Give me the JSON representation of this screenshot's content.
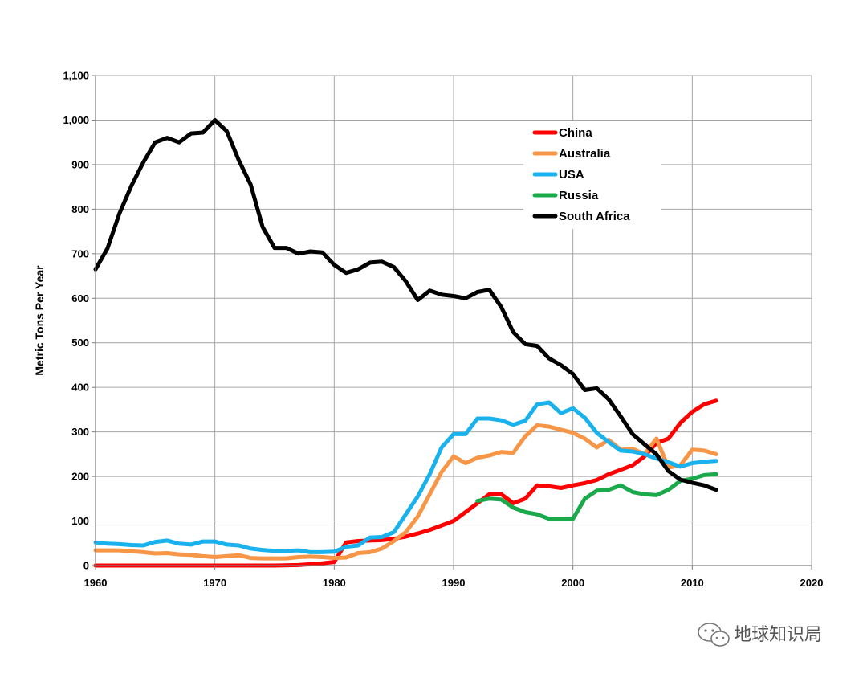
{
  "chart_data": {
    "type": "line",
    "title": "",
    "xlabel": "",
    "ylabel": "Metric Tons Per Year",
    "xlim": [
      1960,
      2020
    ],
    "ylim": [
      0,
      1100
    ],
    "grid": true,
    "legend_position": "top-right",
    "x_ticks": [
      1960,
      1970,
      1980,
      1990,
      2000,
      2010,
      2020
    ],
    "x_tick_labels": [
      "1960",
      "1970",
      "1980",
      "1990",
      "2000",
      "2010",
      "2020"
    ],
    "y_ticks": [
      0,
      100,
      200,
      300,
      400,
      500,
      600,
      700,
      800,
      900,
      1000,
      1100
    ],
    "y_tick_labels": [
      "0",
      "100",
      "200",
      "300",
      "400",
      "500",
      "600",
      "700",
      "800",
      "900",
      "1,000",
      "1,100"
    ],
    "series": [
      {
        "name": "China",
        "color": "#ff0000",
        "x": [
          1960,
          1965,
          1970,
          1975,
          1977,
          1978,
          1979,
          1980,
          1981,
          1982,
          1983,
          1984,
          1985,
          1986,
          1987,
          1988,
          1989,
          1990,
          1991,
          1992,
          1993,
          1994,
          1995,
          1996,
          1997,
          1998,
          1999,
          2000,
          2001,
          2002,
          2003,
          2004,
          2005,
          2006,
          2007,
          2008,
          2009,
          2010,
          2011,
          2012
        ],
        "y": [
          0,
          0,
          0,
          0,
          1,
          3,
          5,
          8,
          52,
          55,
          56,
          57,
          60,
          65,
          72,
          80,
          90,
          100,
          120,
          140,
          160,
          160,
          140,
          150,
          180,
          178,
          174,
          180,
          185,
          192,
          205,
          215,
          225,
          245,
          275,
          285,
          320,
          345,
          362,
          370
        ]
      },
      {
        "name": "Australia",
        "color": "#f79646",
        "x": [
          1960,
          1961,
          1962,
          1963,
          1964,
          1965,
          1966,
          1967,
          1968,
          1969,
          1970,
          1971,
          1972,
          1973,
          1974,
          1975,
          1976,
          1977,
          1978,
          1979,
          1980,
          1981,
          1982,
          1983,
          1984,
          1985,
          1986,
          1987,
          1988,
          1989,
          1990,
          1991,
          1992,
          1993,
          1994,
          1995,
          1996,
          1997,
          1998,
          1999,
          2000,
          2001,
          2002,
          2003,
          2004,
          2005,
          2006,
          2007,
          2008,
          2009,
          2010,
          2011,
          2012
        ],
        "y": [
          34,
          34,
          34,
          32,
          30,
          27,
          28,
          25,
          24,
          21,
          19,
          21,
          23,
          17,
          16,
          16,
          16,
          19,
          20,
          19,
          17,
          18,
          28,
          30,
          38,
          55,
          75,
          110,
          160,
          210,
          245,
          230,
          242,
          247,
          255,
          253,
          290,
          315,
          312,
          305,
          298,
          285,
          265,
          282,
          260,
          262,
          250,
          285,
          220,
          225,
          260,
          258,
          250
        ]
      },
      {
        "name": "USA",
        "color": "#1ab2ec",
        "x": [
          1960,
          1961,
          1962,
          1963,
          1964,
          1965,
          1966,
          1967,
          1968,
          1969,
          1970,
          1971,
          1972,
          1973,
          1974,
          1975,
          1976,
          1977,
          1978,
          1979,
          1980,
          1981,
          1982,
          1983,
          1984,
          1985,
          1986,
          1987,
          1988,
          1989,
          1990,
          1991,
          1992,
          1993,
          1994,
          1995,
          1996,
          1997,
          1998,
          1999,
          2000,
          2001,
          2002,
          2003,
          2004,
          2005,
          2006,
          2007,
          2008,
          2009,
          2010,
          2011,
          2012
        ],
        "y": [
          52,
          49,
          48,
          46,
          45,
          53,
          56,
          49,
          47,
          54,
          54,
          47,
          45,
          38,
          35,
          33,
          33,
          34,
          30,
          30,
          31,
          42,
          45,
          63,
          64,
          75,
          115,
          155,
          205,
          265,
          295,
          295,
          330,
          330,
          326,
          316,
          325,
          362,
          366,
          342,
          353,
          332,
          298,
          277,
          258,
          256,
          250,
          240,
          232,
          222,
          230,
          233,
          235
        ]
      },
      {
        "name": "Russia",
        "color": "#1aaa4c",
        "x": [
          1992,
          1993,
          1994,
          1995,
          1996,
          1997,
          1998,
          1999,
          2000,
          2001,
          2002,
          2003,
          2004,
          2005,
          2006,
          2007,
          2008,
          2009,
          2010,
          2011,
          2012
        ],
        "y": [
          145,
          150,
          148,
          130,
          120,
          115,
          105,
          105,
          105,
          150,
          168,
          170,
          180,
          165,
          160,
          158,
          170,
          190,
          195,
          203,
          205
        ]
      },
      {
        "name": "South Africa",
        "color": "#000000",
        "x": [
          1960,
          1961,
          1962,
          1963,
          1964,
          1965,
          1966,
          1967,
          1968,
          1969,
          1970,
          1971,
          1972,
          1973,
          1974,
          1975,
          1976,
          1977,
          1978,
          1979,
          1980,
          1981,
          1982,
          1983,
          1984,
          1985,
          1986,
          1987,
          1988,
          1989,
          1990,
          1991,
          1992,
          1993,
          1994,
          1995,
          1996,
          1997,
          1998,
          1999,
          2000,
          2001,
          2002,
          2003,
          2004,
          2005,
          2006,
          2007,
          2008,
          2009,
          2010,
          2011,
          2012
        ],
        "y": [
          665,
          712,
          790,
          852,
          905,
          950,
          960,
          950,
          970,
          972,
          1000,
          975,
          910,
          855,
          760,
          713,
          713,
          700,
          705,
          703,
          675,
          657,
          665,
          680,
          682,
          670,
          638,
          596,
          617,
          608,
          605,
          600,
          614,
          619,
          580,
          524,
          497,
          493,
          465,
          450,
          430,
          394,
          398,
          373,
          335,
          295,
          272,
          250,
          212,
          193,
          186,
          180,
          170
        ]
      }
    ]
  },
  "watermark": {
    "text": "地球知识局"
  }
}
